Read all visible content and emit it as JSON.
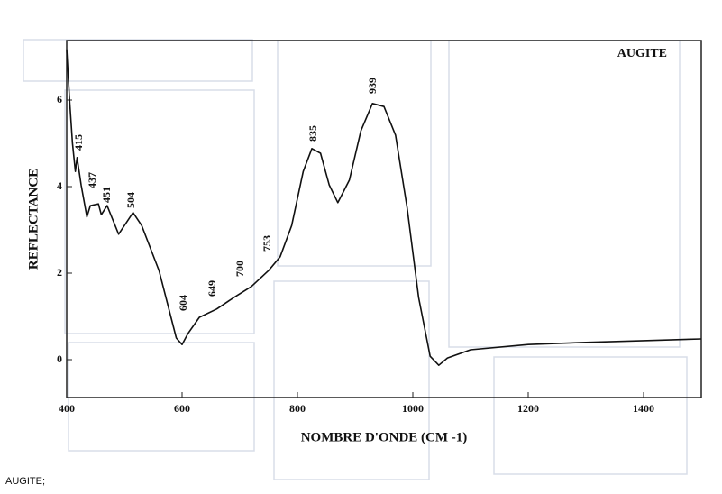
{
  "chart_data": {
    "type": "line",
    "title": "AUGITE",
    "x_label": "NOMBRE D'ONDE (CM -1)",
    "y_label": "REFLECTANCE",
    "caption": "AUGITE;",
    "x": [
      400,
      405,
      410,
      415,
      418,
      425,
      435,
      441,
      455,
      460,
      470,
      490,
      500,
      515,
      530,
      560,
      580,
      590,
      600,
      610,
      630,
      660,
      690,
      720,
      750,
      770,
      790,
      810,
      825,
      840,
      855,
      870,
      890,
      910,
      930,
      950,
      970,
      990,
      1010,
      1030,
      1045,
      1060,
      1100,
      1200,
      1300,
      1400,
      1500
    ],
    "values": [
      7.17,
      6.0,
      5.0,
      4.35,
      4.67,
      4.04,
      3.3,
      3.56,
      3.6,
      3.35,
      3.56,
      2.9,
      3.1,
      3.4,
      3.1,
      2.06,
      1.02,
      0.5,
      0.35,
      0.6,
      0.98,
      1.17,
      1.44,
      1.69,
      2.06,
      2.38,
      3.1,
      4.35,
      4.88,
      4.77,
      4.04,
      3.63,
      4.15,
      5.29,
      5.92,
      5.85,
      5.19,
      3.52,
      1.44,
      0.08,
      -0.13,
      0.04,
      0.23,
      0.35,
      0.4,
      0.44,
      0.48
    ],
    "color": "#111111",
    "xlim": [
      400,
      1500
    ],
    "ylim": [
      -0.875,
      7.375
    ],
    "xticks": [
      400,
      600,
      800,
      1000,
      1200,
      1400
    ],
    "yticks": [
      0,
      2,
      4,
      6
    ],
    "annotations": [
      "415",
      "437",
      "451",
      "504",
      "604",
      "649",
      "700",
      "753",
      "835",
      "939"
    ]
  }
}
